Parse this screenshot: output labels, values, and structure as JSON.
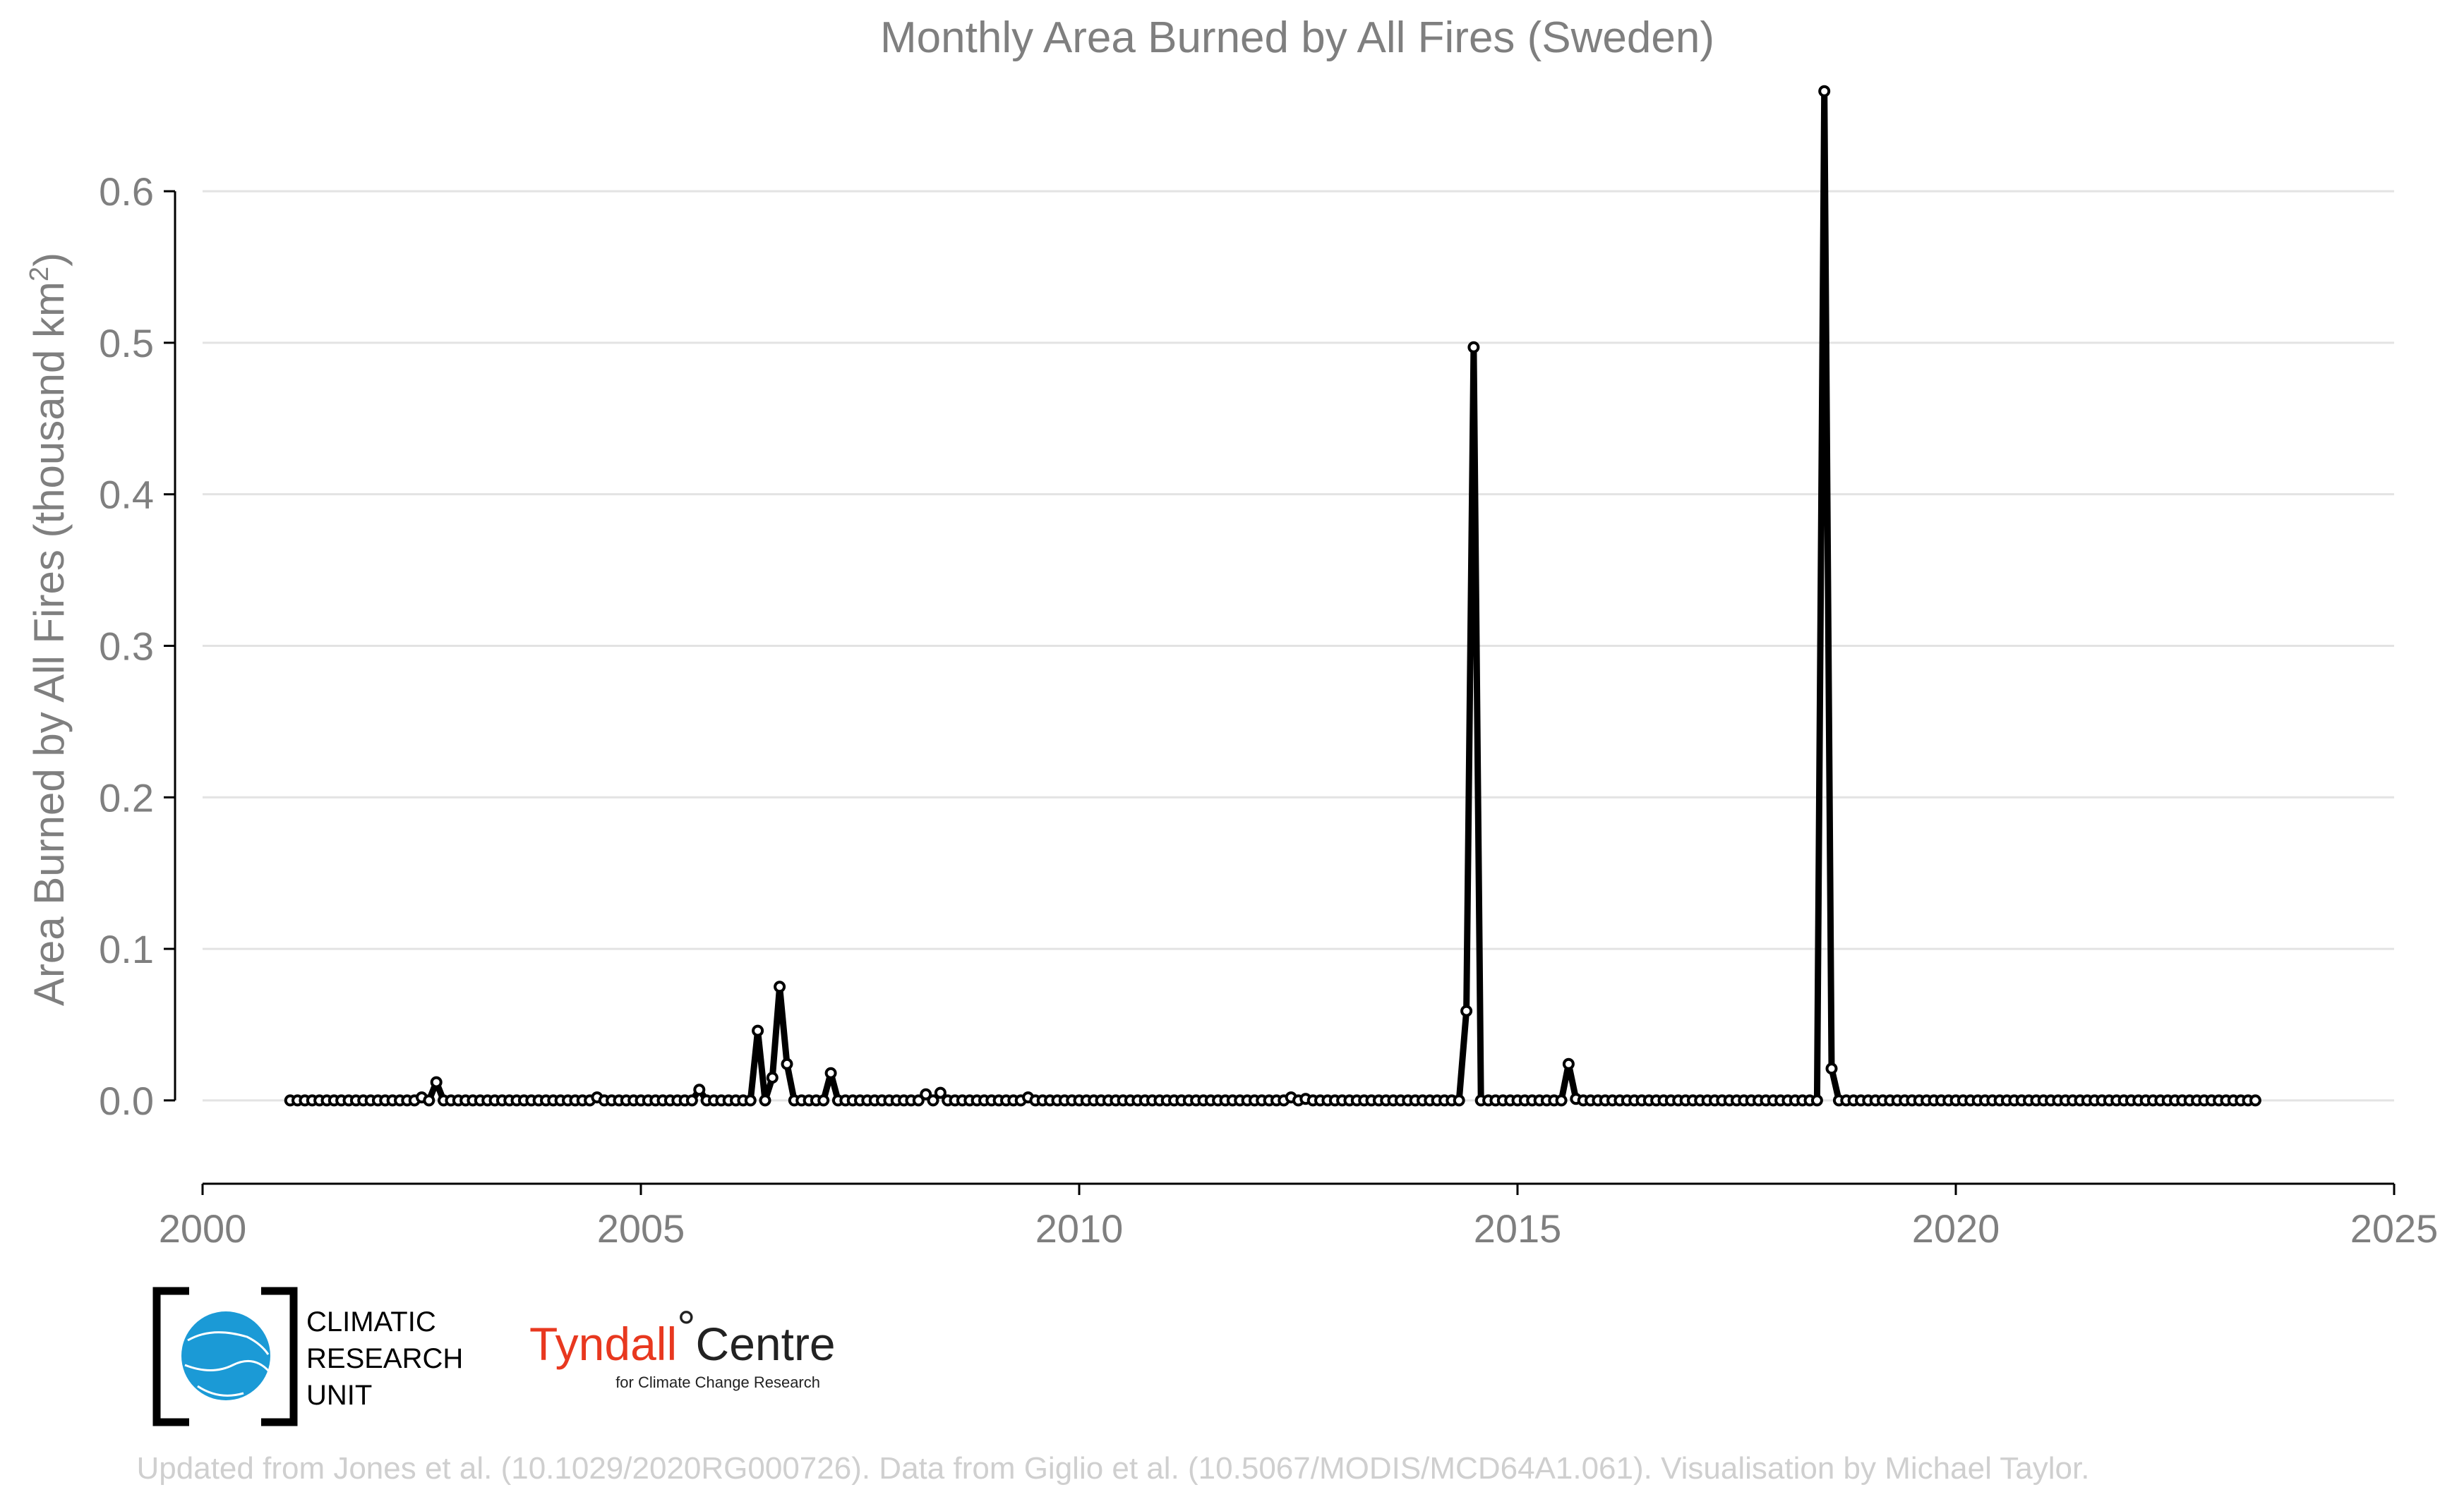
{
  "chart_data": {
    "type": "line",
    "title": "Monthly Area Burned by All Fires (Sweden)",
    "ylabel": "Area Burned by All Fires (thousand km",
    "ylabel_superscript": "2",
    "ylabel_close": ")",
    "xlabel": "",
    "xlim": [
      2000,
      2025
    ],
    "ylim": [
      -0.055,
      0.675
    ],
    "x_ticks": [
      2000,
      2005,
      2010,
      2015,
      2020,
      2025
    ],
    "y_ticks": [
      0.0,
      0.1,
      0.2,
      0.3,
      0.4,
      0.5,
      0.6
    ],
    "y_tick_labels": [
      "0.0",
      "0.1",
      "0.2",
      "0.3",
      "0.4",
      "0.5",
      "0.6"
    ],
    "grid": "horizontal",
    "legend": "none",
    "line_color": "#000000",
    "series": [
      {
        "start_year": 2001,
        "start_month": 1,
        "values": [
          0,
          0,
          0,
          0,
          0,
          0,
          0,
          0,
          0,
          0,
          0,
          0,
          0,
          0,
          0,
          0,
          0,
          0,
          0.002,
          0,
          0.012,
          0,
          0,
          0,
          0,
          0,
          0,
          0,
          0,
          0,
          0,
          0,
          0,
          0,
          0,
          0,
          0,
          0,
          0,
          0,
          0,
          0,
          0.002,
          0,
          0,
          0,
          0,
          0,
          0,
          0,
          0,
          0,
          0,
          0,
          0,
          0,
          0.007,
          0,
          0,
          0,
          0,
          0,
          0,
          0,
          0.046,
          0,
          0.015,
          0.075,
          0.024,
          0,
          0,
          0,
          0,
          0,
          0.018,
          0,
          0,
          0,
          0,
          0,
          0,
          0,
          0,
          0,
          0,
          0,
          0,
          0.004,
          0,
          0.005,
          0,
          0,
          0,
          0,
          0,
          0,
          0,
          0,
          0,
          0,
          0,
          0.002,
          0,
          0,
          0,
          0,
          0,
          0,
          0,
          0,
          0,
          0,
          0,
          0,
          0,
          0,
          0,
          0,
          0,
          0,
          0,
          0,
          0,
          0,
          0,
          0,
          0,
          0,
          0,
          0,
          0,
          0,
          0,
          0,
          0,
          0,
          0,
          0.002,
          0,
          0.001,
          0,
          0,
          0,
          0,
          0,
          0,
          0,
          0,
          0,
          0,
          0,
          0,
          0,
          0,
          0,
          0,
          0,
          0,
          0,
          0,
          0,
          0.059,
          0.497,
          0,
          0,
          0,
          0,
          0,
          0,
          0,
          0,
          0,
          0,
          0,
          0,
          0.024,
          0.001,
          0,
          0,
          0,
          0,
          0,
          0,
          0,
          0,
          0,
          0,
          0,
          0,
          0,
          0,
          0,
          0,
          0,
          0,
          0,
          0,
          0,
          0,
          0,
          0,
          0,
          0,
          0,
          0,
          0,
          0,
          0,
          0,
          0,
          0.666,
          0.021,
          0,
          0,
          0,
          0,
          0,
          0,
          0,
          0,
          0,
          0,
          0,
          0,
          0,
          0,
          0,
          0,
          0,
          0,
          0,
          0,
          0,
          0,
          0,
          0,
          0,
          0,
          0,
          0,
          0,
          0,
          0,
          0,
          0,
          0,
          0,
          0,
          0,
          0,
          0,
          0,
          0,
          0,
          0,
          0,
          0,
          0,
          0,
          0,
          0,
          0,
          0,
          0,
          0,
          0,
          0,
          0,
          0,
          0
        ]
      }
    ]
  },
  "logos": {
    "cru": {
      "line1": "CLIMATIC",
      "line2": "RESEARCH",
      "line3": "UNIT",
      "globe_color": "#1b9ad6"
    },
    "tyndall": {
      "name_part1": "Tyndall",
      "degree": "°",
      "name_part2": "Centre",
      "subtitle": "for Climate Change Research",
      "accent_color": "#e8381f"
    }
  },
  "credit": "Updated from Jones et al. (10.1029/2020RG000726). Data from Giglio et al. (10.5067/MODIS/MCD64A1.061). Visualisation by Michael Taylor."
}
